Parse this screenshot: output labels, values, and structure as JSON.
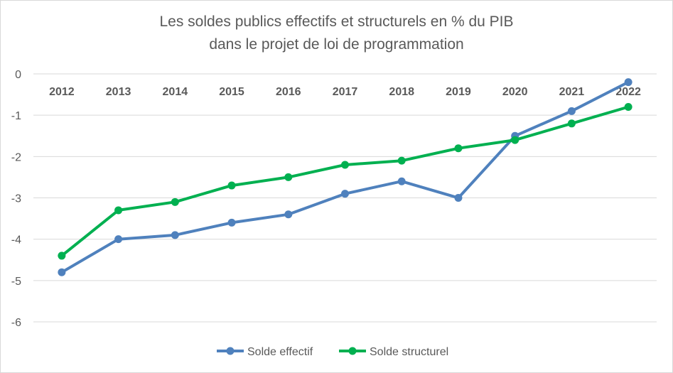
{
  "chart_data": {
    "type": "line",
    "title_line1": "Les soldes publics  effectifs et structurels en % du PIB",
    "title_line2": "dans le projet de loi de programmation",
    "categories": [
      "2012",
      "2013",
      "2014",
      "2015",
      "2016",
      "2017",
      "2018",
      "2019",
      "2020",
      "2021",
      "2022"
    ],
    "ylim": [
      -6,
      0
    ],
    "yticks": [
      "0",
      "-1",
      "-2",
      "-3",
      "-4",
      "-5",
      "-6"
    ],
    "grid": true,
    "legend_position": "bottom",
    "series": [
      {
        "name": "Solde effectif",
        "color": "#4f81bd",
        "values": [
          -4.8,
          -4.0,
          -3.9,
          -3.6,
          -3.4,
          -2.9,
          -2.6,
          -3.0,
          -1.5,
          -0.9,
          -0.2
        ]
      },
      {
        "name": "Solde structurel",
        "color": "#00b050",
        "values": [
          -4.4,
          -3.3,
          -3.1,
          -2.7,
          -2.5,
          -2.2,
          -2.1,
          -1.8,
          -1.6,
          -1.2,
          -0.8
        ]
      }
    ]
  }
}
